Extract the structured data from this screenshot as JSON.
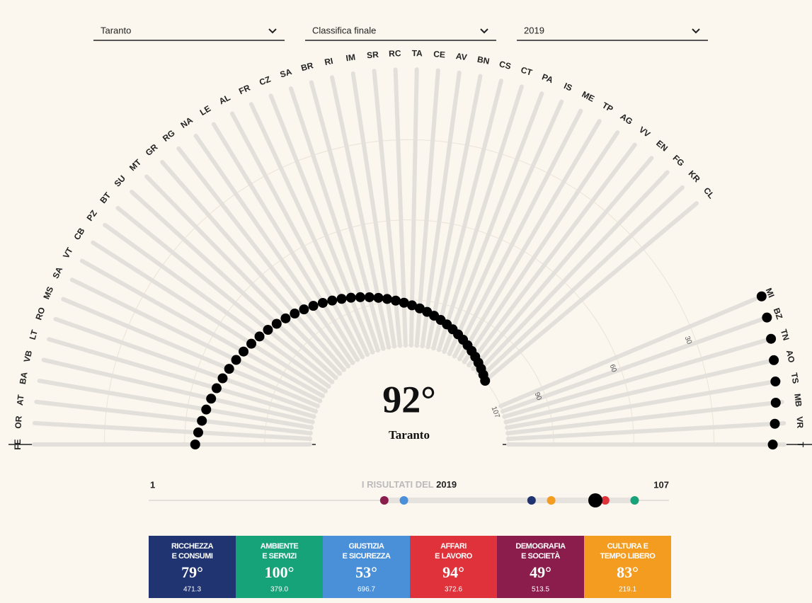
{
  "filters": [
    {
      "value": "Taranto"
    },
    {
      "value": "Classifica finale"
    },
    {
      "value": "2019"
    }
  ],
  "fan": {
    "left": [
      {
        "label": "FE",
        "rank": 64
      },
      {
        "label": "OR",
        "rank": 65
      },
      {
        "label": "AT",
        "rank": 66
      },
      {
        "label": "BA",
        "rank": 67
      },
      {
        "label": "VB",
        "rank": 68
      },
      {
        "label": "LT",
        "rank": 69
      },
      {
        "label": "RO",
        "rank": 70
      },
      {
        "label": "MS",
        "rank": 71
      },
      {
        "label": "SA",
        "rank": 72
      },
      {
        "label": "VT",
        "rank": 73
      },
      {
        "label": "CB",
        "rank": 74
      },
      {
        "label": "PZ",
        "rank": 75
      },
      {
        "label": "BT",
        "rank": 76
      },
      {
        "label": "SU",
        "rank": 77
      },
      {
        "label": "MT",
        "rank": 78
      },
      {
        "label": "GR",
        "rank": 79
      },
      {
        "label": "RG",
        "rank": 80
      },
      {
        "label": "NA",
        "rank": 81
      },
      {
        "label": "LE",
        "rank": 82
      },
      {
        "label": "AL",
        "rank": 83
      },
      {
        "label": "FR",
        "rank": 84
      },
      {
        "label": "CZ",
        "rank": 85
      },
      {
        "label": "SA",
        "rank": 86
      },
      {
        "label": "BR",
        "rank": 87
      },
      {
        "label": "RI",
        "rank": 88
      },
      {
        "label": "IM",
        "rank": 89
      },
      {
        "label": "SR",
        "rank": 90
      },
      {
        "label": "RC",
        "rank": 91
      },
      {
        "label": "TA",
        "rank": 92
      },
      {
        "label": "CE",
        "rank": 93
      },
      {
        "label": "AV",
        "rank": 94
      },
      {
        "label": "BN",
        "rank": 95
      },
      {
        "label": "CS",
        "rank": 96
      },
      {
        "label": "CT",
        "rank": 97
      },
      {
        "label": "PA",
        "rank": 98
      },
      {
        "label": "IS",
        "rank": 99
      },
      {
        "label": "ME",
        "rank": 100
      },
      {
        "label": "TP",
        "rank": 101
      },
      {
        "label": "AG",
        "rank": 102
      },
      {
        "label": "VV",
        "rank": 103
      },
      {
        "label": "EN",
        "rank": 104
      },
      {
        "label": "FG",
        "rank": 105
      },
      {
        "label": "KR",
        "rank": 106
      },
      {
        "label": "CL",
        "rank": 107
      }
    ],
    "right": [
      {
        "label": "MI",
        "rank": 1
      },
      {
        "label": "BZ",
        "rank": 2
      },
      {
        "label": "TN",
        "rank": 3
      },
      {
        "label": "AO",
        "rank": 4
      },
      {
        "label": "TS",
        "rank": 5
      },
      {
        "label": "MB",
        "rank": 6
      },
      {
        "label": "VR",
        "rank": 7
      },
      {
        "label": "T",
        "rank": 8
      }
    ],
    "ticks": [
      107,
      90,
      60,
      30
    ]
  },
  "center": {
    "rank": 92,
    "rank_label": "92°",
    "city": "Taranto"
  },
  "results": {
    "min": 1,
    "max": 107,
    "label": "I RISULTATI DEL",
    "year": "2019"
  },
  "categories": [
    {
      "name": [
        "RICCHEZZA",
        "E CONSUMI"
      ],
      "rank": 79,
      "rank_label": "79°",
      "score": "471.3",
      "color": "#1f3470"
    },
    {
      "name": [
        "AMBIENTE",
        "E SERVIZI"
      ],
      "rank": 100,
      "rank_label": "100°",
      "score": "379.0",
      "color": "#17a37a"
    },
    {
      "name": [
        "GIUSTIZIA",
        "E SICUREZZA"
      ],
      "rank": 53,
      "rank_label": "53°",
      "score": "696.7",
      "color": "#4a90d9"
    },
    {
      "name": [
        "AFFARI",
        "E LAVORO"
      ],
      "rank": 94,
      "rank_label": "94°",
      "score": "372.6",
      "color": "#e0323a"
    },
    {
      "name": [
        "DEMOGRAFIA",
        "E SOCIETÀ"
      ],
      "rank": 49,
      "rank_label": "49°",
      "score": "513.5",
      "color": "#8b1d4d"
    },
    {
      "name": [
        "CULTURA E",
        "TEMPO LIBERO"
      ],
      "rank": 83,
      "rank_label": "83°",
      "score": "219.1",
      "color": "#f39c1f"
    }
  ]
}
